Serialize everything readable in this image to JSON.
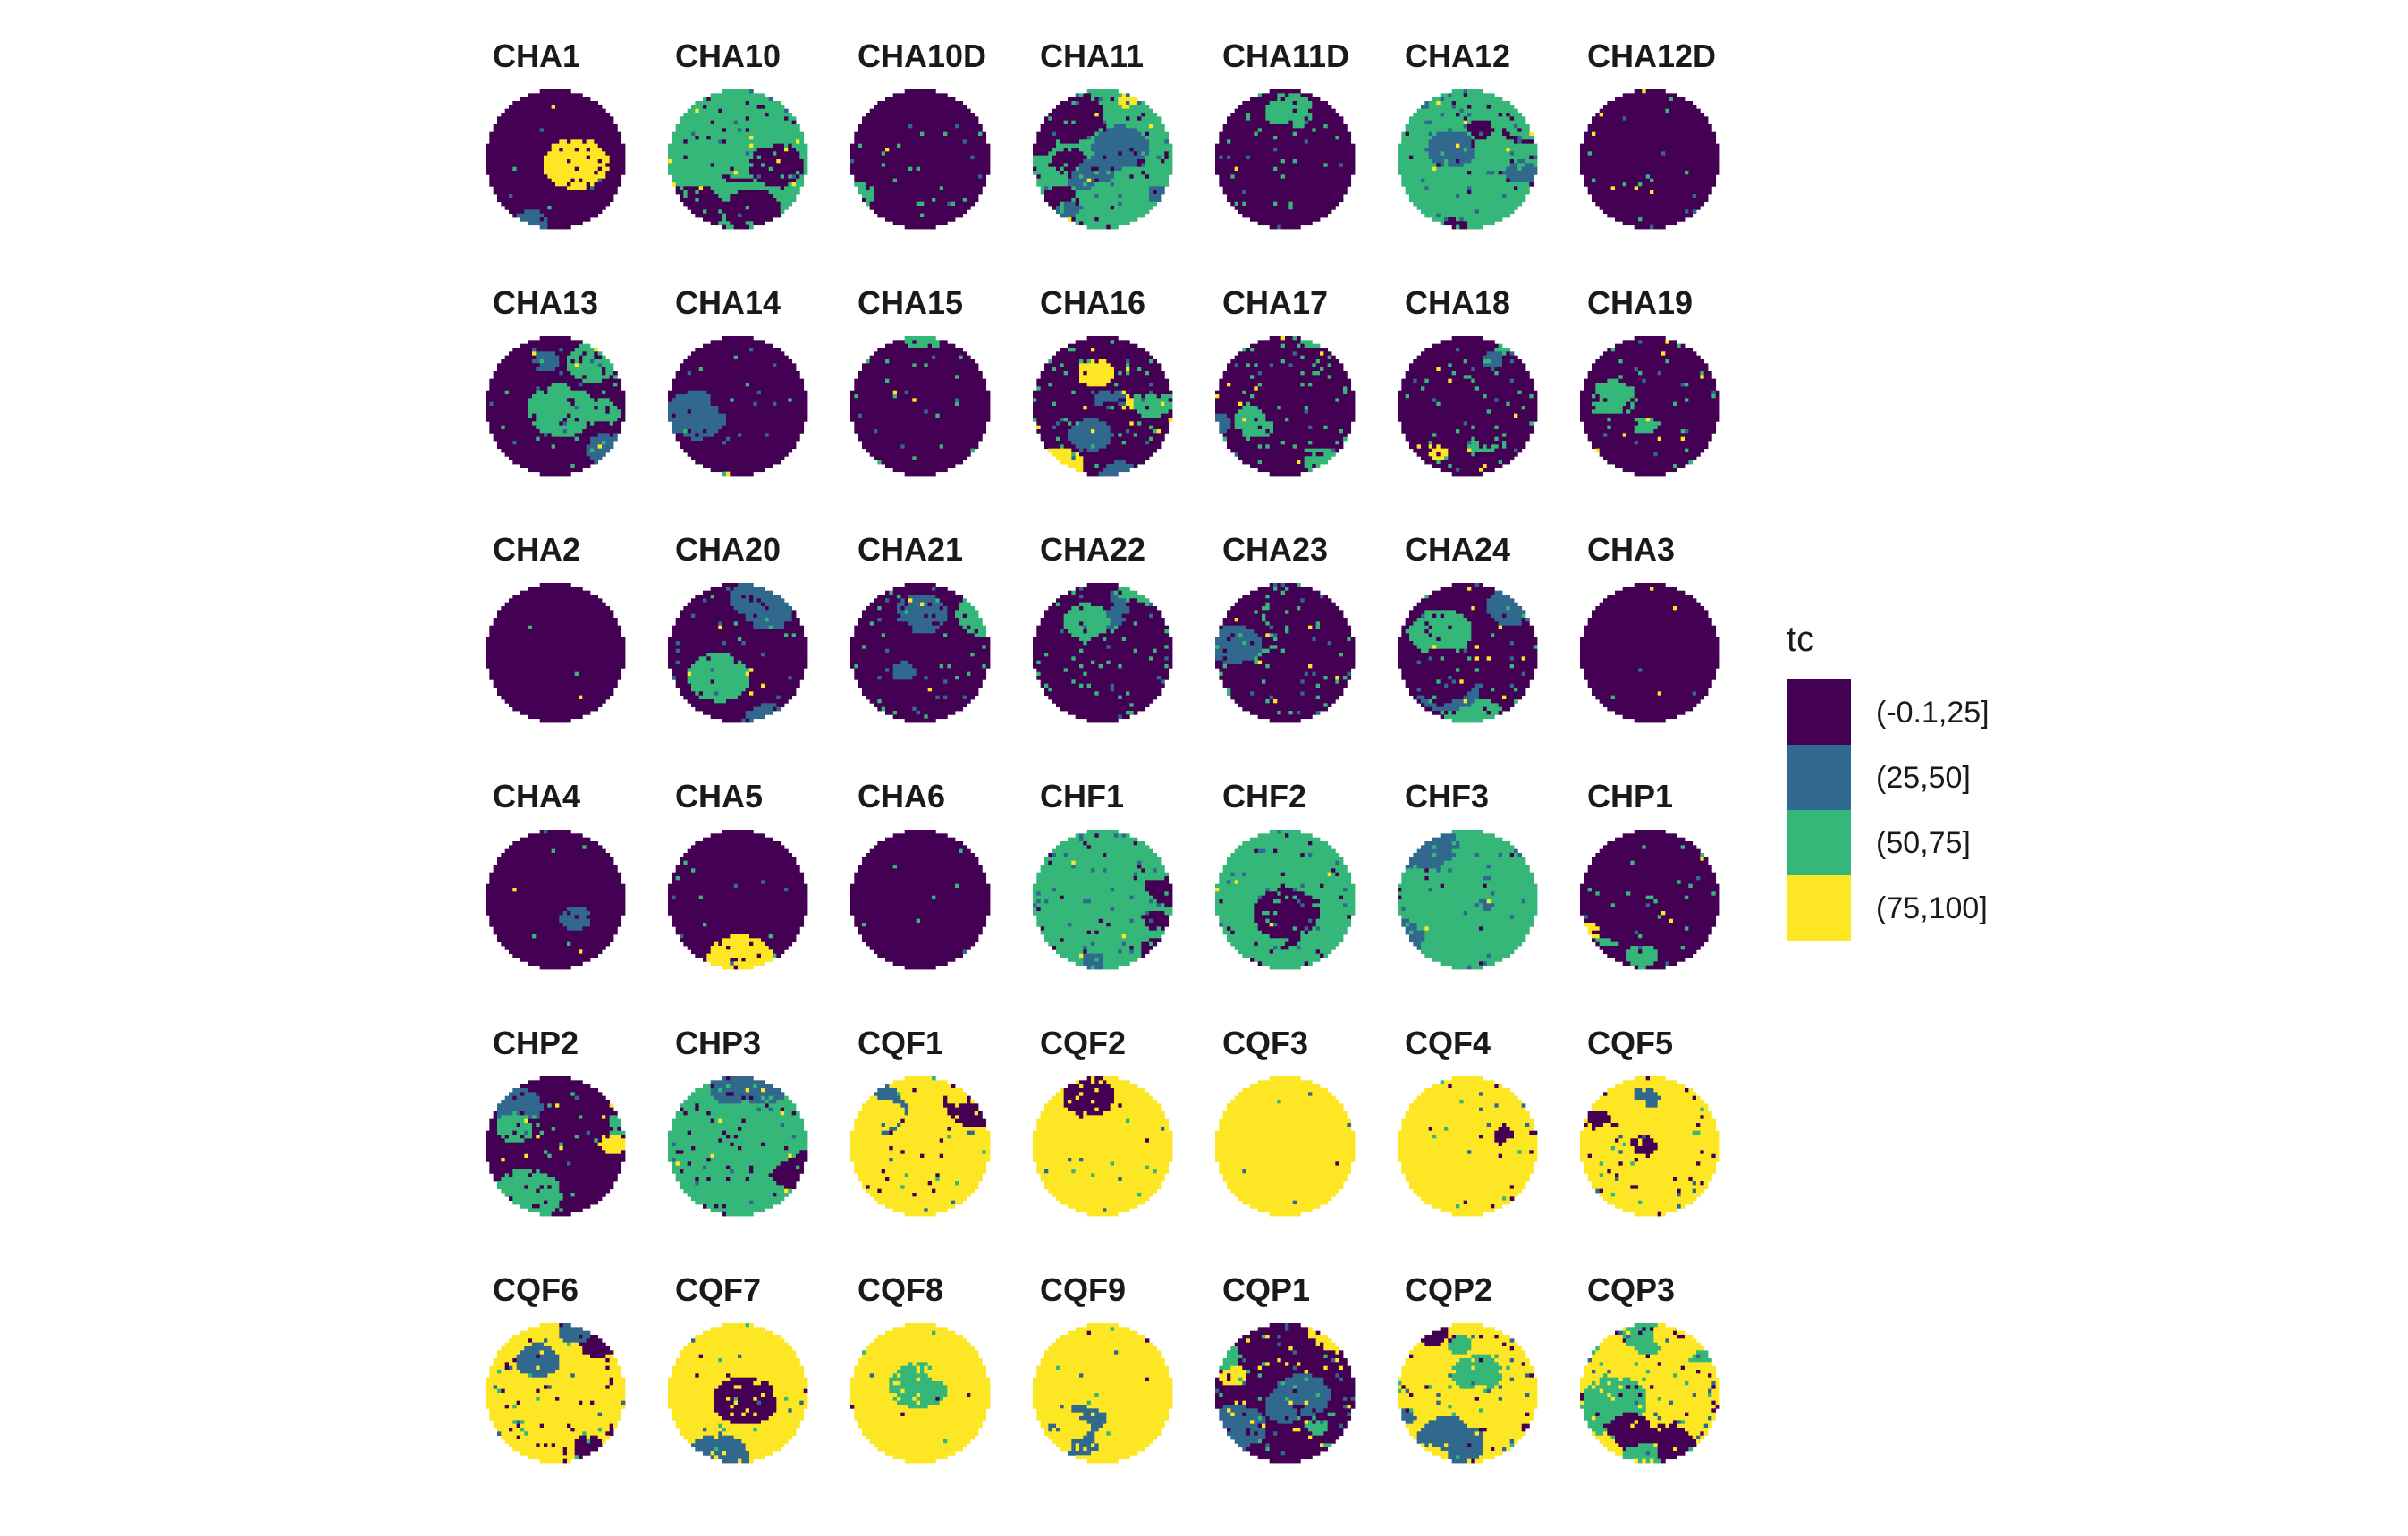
{
  "chart_data": {
    "type": "heatmap",
    "description_of_layout": "",
    "facets": [
      {
        "name": "CHA1",
        "dominant": "(-0.1,25]",
        "shares": [
          0.97,
          0.01,
          0.01,
          0.01
        ]
      },
      {
        "name": "CHA10",
        "dominant": "(50,75]",
        "shares": [
          0.35,
          0.1,
          0.5,
          0.05
        ]
      },
      {
        "name": "CHA10D",
        "dominant": "(-0.1,25]",
        "shares": [
          0.75,
          0.08,
          0.15,
          0.02
        ]
      },
      {
        "name": "CHA11",
        "dominant": "(50,75]",
        "shares": [
          0.35,
          0.22,
          0.38,
          0.05
        ]
      },
      {
        "name": "CHA11D",
        "dominant": "(-0.1,25]",
        "shares": [
          0.8,
          0.06,
          0.13,
          0.01
        ]
      },
      {
        "name": "CHA12",
        "dominant": "(50,75]",
        "shares": [
          0.25,
          0.3,
          0.4,
          0.05
        ]
      },
      {
        "name": "CHA12D",
        "dominant": "(-0.1,25]",
        "shares": [
          0.85,
          0.05,
          0.09,
          0.01
        ]
      },
      {
        "name": "CHA13",
        "dominant": "(-0.1,25]",
        "shares": [
          0.75,
          0.12,
          0.12,
          0.01
        ]
      },
      {
        "name": "CHA14",
        "dominant": "(-0.1,25]",
        "shares": [
          0.78,
          0.1,
          0.11,
          0.01
        ]
      },
      {
        "name": "CHA15",
        "dominant": "(-0.1,25]",
        "shares": [
          0.82,
          0.06,
          0.11,
          0.01
        ]
      },
      {
        "name": "CHA16",
        "dominant": "(-0.1,25]",
        "shares": [
          0.45,
          0.12,
          0.35,
          0.08
        ]
      },
      {
        "name": "CHA17",
        "dominant": "(-0.1,25]",
        "shares": [
          0.5,
          0.1,
          0.35,
          0.05
        ]
      },
      {
        "name": "CHA18",
        "dominant": "(-0.1,25]",
        "shares": [
          0.55,
          0.1,
          0.3,
          0.05
        ]
      },
      {
        "name": "CHA19",
        "dominant": "(-0.1,25]",
        "shares": [
          0.68,
          0.08,
          0.18,
          0.06
        ]
      },
      {
        "name": "CHA2",
        "dominant": "(-0.1,25]",
        "shares": [
          0.97,
          0.01,
          0.01,
          0.01
        ]
      },
      {
        "name": "CHA20",
        "dominant": "(-0.1,25]",
        "shares": [
          0.62,
          0.2,
          0.12,
          0.06
        ]
      },
      {
        "name": "CHA21",
        "dominant": "(-0.1,25]",
        "shares": [
          0.72,
          0.1,
          0.14,
          0.04
        ]
      },
      {
        "name": "CHA22",
        "dominant": "(-0.1,25]",
        "shares": [
          0.55,
          0.12,
          0.3,
          0.03
        ]
      },
      {
        "name": "CHA23",
        "dominant": "(-0.1,25]",
        "shares": [
          0.55,
          0.15,
          0.26,
          0.04
        ]
      },
      {
        "name": "CHA24",
        "dominant": "(-0.1,25]",
        "shares": [
          0.65,
          0.12,
          0.19,
          0.04
        ]
      },
      {
        "name": "CHA3",
        "dominant": "(-0.1,25]",
        "shares": [
          0.97,
          0.01,
          0.01,
          0.01
        ]
      },
      {
        "name": "CHA4",
        "dominant": "(-0.1,25]",
        "shares": [
          0.92,
          0.02,
          0.04,
          0.02
        ]
      },
      {
        "name": "CHA5",
        "dominant": "(-0.1,25]",
        "shares": [
          0.9,
          0.03,
          0.05,
          0.02
        ]
      },
      {
        "name": "CHA6",
        "dominant": "(-0.1,25]",
        "shares": [
          0.9,
          0.03,
          0.05,
          0.02
        ]
      },
      {
        "name": "CHF1",
        "dominant": "(50,75]",
        "shares": [
          0.2,
          0.2,
          0.55,
          0.05
        ]
      },
      {
        "name": "CHF2",
        "dominant": "(50,75]",
        "shares": [
          0.18,
          0.17,
          0.62,
          0.03
        ]
      },
      {
        "name": "CHF3",
        "dominant": "(50,75]",
        "shares": [
          0.1,
          0.2,
          0.65,
          0.05
        ]
      },
      {
        "name": "CHP1",
        "dominant": "(-0.1,25]",
        "shares": [
          0.75,
          0.05,
          0.18,
          0.02
        ]
      },
      {
        "name": "CHP2",
        "dominant": "(-0.1,25]",
        "shares": [
          0.65,
          0.05,
          0.25,
          0.05
        ]
      },
      {
        "name": "CHP3",
        "dominant": "(50,75]",
        "shares": [
          0.35,
          0.1,
          0.5,
          0.05
        ]
      },
      {
        "name": "CQF1",
        "dominant": "(75,100]",
        "shares": [
          0.1,
          0.05,
          0.05,
          0.8
        ]
      },
      {
        "name": "CQF2",
        "dominant": "(75,100]",
        "shares": [
          0.02,
          0.03,
          0.05,
          0.9
        ]
      },
      {
        "name": "CQF3",
        "dominant": "(75,100]",
        "shares": [
          0.01,
          0.02,
          0.02,
          0.95
        ]
      },
      {
        "name": "CQF4",
        "dominant": "(75,100]",
        "shares": [
          0.1,
          0.04,
          0.04,
          0.82
        ]
      },
      {
        "name": "CQF5",
        "dominant": "(75,100]",
        "shares": [
          0.18,
          0.08,
          0.04,
          0.7
        ]
      },
      {
        "name": "CQF6",
        "dominant": "(75,100]",
        "shares": [
          0.3,
          0.1,
          0.05,
          0.55
        ]
      },
      {
        "name": "CQF7",
        "dominant": "(75,100]",
        "shares": [
          0.04,
          0.06,
          0.05,
          0.85
        ]
      },
      {
        "name": "CQF8",
        "dominant": "(75,100]",
        "shares": [
          0.02,
          0.03,
          0.05,
          0.9
        ]
      },
      {
        "name": "CQF9",
        "dominant": "(75,100]",
        "shares": [
          0.02,
          0.03,
          0.03,
          0.92
        ]
      },
      {
        "name": "CQP1",
        "dominant": "(-0.1,25]",
        "shares": [
          0.4,
          0.2,
          0.2,
          0.2
        ]
      },
      {
        "name": "CQP2",
        "dominant": "(75,100]",
        "shares": [
          0.3,
          0.15,
          0.15,
          0.4
        ]
      },
      {
        "name": "CQP3",
        "dominant": "(75,100]",
        "shares": [
          0.3,
          0.15,
          0.2,
          0.35
        ]
      }
    ],
    "legend": {
      "title": "tc",
      "placement": "right",
      "entries": [
        {
          "label": "(-0.1,25]",
          "color": "#440154"
        },
        {
          "label": "(25,50]",
          "color": "#31688E"
        },
        {
          "label": "(50,75]",
          "color": "#35B779"
        },
        {
          "label": "(75,100]",
          "color": "#FDE725"
        }
      ]
    },
    "facet_columns": 7,
    "facet_rows": 6
  }
}
